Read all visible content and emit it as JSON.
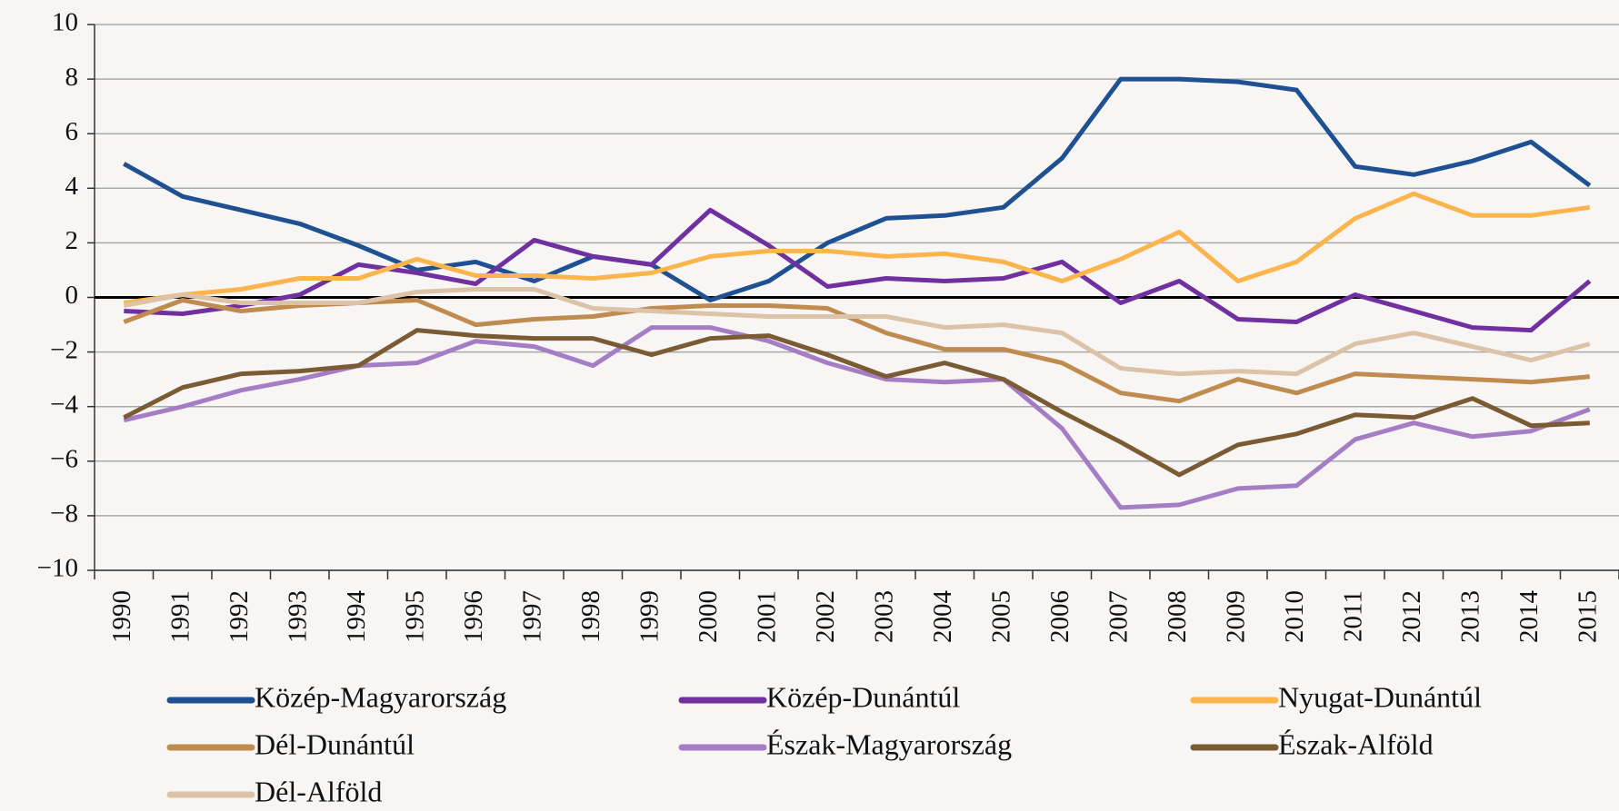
{
  "chart_data": {
    "type": "line",
    "categories": [
      "1990",
      "1991",
      "1992",
      "1993",
      "1994",
      "1995",
      "1996",
      "1997",
      "1998",
      "1999",
      "2000",
      "2001",
      "2002",
      "2003",
      "2004",
      "2005",
      "2006",
      "2007",
      "2008",
      "2009",
      "2010",
      "2011",
      "2012",
      "2013",
      "2014",
      "2015"
    ],
    "ylim": [
      -10,
      10
    ],
    "yticks": [
      {
        "value": -10,
        "label": "−10"
      },
      {
        "value": -8,
        "label": "−8"
      },
      {
        "value": -6,
        "label": "−6"
      },
      {
        "value": -4,
        "label": "−4"
      },
      {
        "value": -2,
        "label": "−2"
      },
      0,
      2,
      4,
      6,
      8,
      10
    ],
    "grid": true,
    "series": [
      {
        "name": "Közép-Magyarország",
        "color": "#1f5192",
        "values": [
          4.9,
          3.7,
          3.2,
          2.7,
          1.9,
          1.0,
          1.3,
          0.6,
          1.5,
          1.2,
          -0.1,
          0.6,
          2.0,
          2.9,
          3.0,
          3.3,
          5.1,
          8.0,
          8.0,
          7.9,
          7.6,
          4.8,
          4.5,
          5.0,
          5.7,
          4.1
        ]
      },
      {
        "name": "Közép-Dunántúl",
        "color": "#7030a0",
        "values": [
          -0.5,
          -0.6,
          -0.3,
          0.1,
          1.2,
          0.9,
          0.5,
          2.1,
          1.5,
          1.2,
          3.2,
          1.9,
          0.4,
          0.7,
          0.6,
          0.7,
          1.3,
          -0.2,
          0.6,
          -0.8,
          -0.9,
          0.1,
          -0.5,
          -1.1,
          -1.2,
          0.6
        ]
      },
      {
        "name": "Nyugat-Dunántúl",
        "color": "#fbb54c",
        "values": [
          -0.2,
          0.1,
          0.3,
          0.7,
          0.7,
          1.4,
          0.8,
          0.8,
          0.7,
          0.9,
          1.5,
          1.7,
          1.7,
          1.5,
          1.6,
          1.3,
          0.6,
          1.4,
          2.4,
          0.6,
          1.3,
          2.9,
          3.8,
          3.0,
          3.0,
          3.3
        ]
      },
      {
        "name": "Dél-Dunántúl",
        "color": "#c08b4f",
        "values": [
          -0.9,
          -0.1,
          -0.5,
          -0.3,
          -0.2,
          -0.1,
          -1.0,
          -0.8,
          -0.7,
          -0.4,
          -0.3,
          -0.3,
          -0.4,
          -1.3,
          -1.9,
          -1.9,
          -2.4,
          -3.5,
          -3.8,
          -3.0,
          -3.5,
          -2.8,
          -2.9,
          -3.0,
          -3.1,
          -2.9
        ]
      },
      {
        "name": "Észak-Magyarország",
        "color": "#a57dc4",
        "values": [
          -4.5,
          -4.0,
          -3.4,
          -3.0,
          -2.5,
          -2.4,
          -1.6,
          -1.8,
          -2.5,
          -1.1,
          -1.1,
          -1.6,
          -2.4,
          -3.0,
          -3.1,
          -3.0,
          -4.8,
          -7.7,
          -7.6,
          -7.0,
          -6.9,
          -5.2,
          -4.6,
          -5.1,
          -4.9,
          -4.1
        ]
      },
      {
        "name": "Észak-Alföld",
        "color": "#7b5b33",
        "values": [
          -4.4,
          -3.3,
          -2.8,
          -2.7,
          -2.5,
          -1.2,
          -1.4,
          -1.5,
          -1.5,
          -2.1,
          -1.5,
          -1.4,
          -2.1,
          -2.9,
          -2.4,
          -3.0,
          -4.2,
          -5.3,
          -6.5,
          -5.4,
          -5.0,
          -4.3,
          -4.4,
          -3.7,
          -4.7,
          -4.6
        ]
      },
      {
        "name": "Dél-Alföld",
        "color": "#dcc2a6",
        "values": [
          -0.3,
          0.1,
          -0.2,
          -0.2,
          -0.2,
          0.2,
          0.3,
          0.3,
          -0.4,
          -0.5,
          -0.6,
          -0.7,
          -0.7,
          -0.7,
          -1.1,
          -1.0,
          -1.3,
          -2.6,
          -2.8,
          -2.7,
          -2.8,
          -1.7,
          -1.3,
          -1.8,
          -2.3,
          -1.7
        ]
      }
    ]
  }
}
